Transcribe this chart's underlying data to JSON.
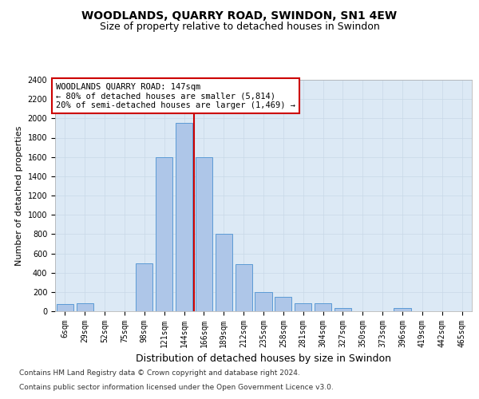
{
  "title": "WOODLANDS, QUARRY ROAD, SWINDON, SN1 4EW",
  "subtitle": "Size of property relative to detached houses in Swindon",
  "xlabel": "Distribution of detached houses by size in Swindon",
  "ylabel": "Number of detached properties",
  "footer_line1": "Contains HM Land Registry data © Crown copyright and database right 2024.",
  "footer_line2": "Contains public sector information licensed under the Open Government Licence v3.0.",
  "categories": [
    "6sqm",
    "29sqm",
    "52sqm",
    "75sqm",
    "98sqm",
    "121sqm",
    "144sqm",
    "166sqm",
    "189sqm",
    "212sqm",
    "235sqm",
    "258sqm",
    "281sqm",
    "304sqm",
    "327sqm",
    "350sqm",
    "373sqm",
    "396sqm",
    "419sqm",
    "442sqm",
    "465sqm"
  ],
  "values": [
    75,
    80,
    0,
    0,
    500,
    1600,
    1950,
    1600,
    800,
    490,
    200,
    150,
    80,
    80,
    30,
    0,
    0,
    30,
    0,
    0,
    0
  ],
  "bar_color": "#aec6e8",
  "bar_edge_color": "#5b9bd5",
  "vline_pos": 6.5,
  "vline_color": "#cc0000",
  "annotation_text": "WOODLANDS QUARRY ROAD: 147sqm\n← 80% of detached houses are smaller (5,814)\n20% of semi-detached houses are larger (1,469) →",
  "annotation_box_color": "#ffffff",
  "annotation_box_edge": "#cc0000",
  "ylim": [
    0,
    2400
  ],
  "yticks": [
    0,
    200,
    400,
    600,
    800,
    1000,
    1200,
    1400,
    1600,
    1800,
    2000,
    2200,
    2400
  ],
  "grid_color": "#c8d8e8",
  "bg_color": "#dce9f5",
  "title_fontsize": 10,
  "subtitle_fontsize": 9,
  "xlabel_fontsize": 9,
  "ylabel_fontsize": 8,
  "tick_fontsize": 7,
  "annotation_fontsize": 7.5,
  "footer_fontsize": 6.5
}
